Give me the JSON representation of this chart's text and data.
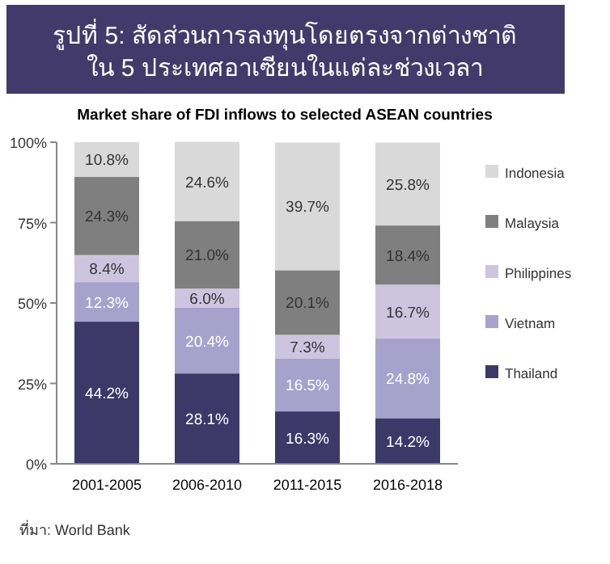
{
  "chart_data": {
    "type": "bar",
    "stacked": true,
    "title": "รูปที่ 5: สัดส่วนการลงทุนโดยตรงจากต่างชาติ ใน 5 ประเทศอาเซียนในแต่ละช่วงเวลา",
    "subtitle": "Market share of FDI inflows to selected ASEAN countries",
    "annotations": [
      "ที่มา: World Bank"
    ],
    "categories": [
      "2001-2005",
      "2006-2010",
      "2011-2015",
      "2016-2018"
    ],
    "ylim": [
      0,
      100
    ],
    "yticks": [
      {
        "value": 0,
        "label": "0%"
      },
      {
        "value": 25,
        "label": "25%"
      },
      {
        "value": 50,
        "label": "50%"
      },
      {
        "value": 75,
        "label": "75%"
      },
      {
        "value": 100,
        "label": "100%"
      }
    ],
    "grid": false,
    "legend": "right",
    "series": [
      {
        "name": "Thailand",
        "color": "#3d3868",
        "values": [
          44.2,
          28.1,
          16.3,
          14.2
        ],
        "value_labels": [
          "44.2%",
          "28.1%",
          "16.3%",
          "14.2%"
        ]
      },
      {
        "name": "Vietnam",
        "color": "#a7a2cc",
        "values": [
          12.3,
          20.4,
          16.5,
          24.8
        ],
        "value_labels": [
          "12.3%",
          "20.4%",
          "16.5%",
          "24.8%"
        ]
      },
      {
        "name": "Philippines",
        "color": "#cdc5df",
        "values": [
          8.4,
          6.0,
          7.3,
          16.7
        ],
        "value_labels": [
          "8.4%",
          "6.0%",
          "7.3%",
          "16.7%"
        ]
      },
      {
        "name": "Malaysia",
        "color": "#7f7f7f",
        "values": [
          24.3,
          21.0,
          20.1,
          18.4
        ],
        "value_labels": [
          "24.3%",
          "21.0%",
          "20.1%",
          "18.4%"
        ]
      },
      {
        "name": "Indonesia",
        "color": "#d9d9d9",
        "values": [
          10.8,
          24.6,
          39.7,
          25.8
        ],
        "value_labels": [
          "10.8%",
          "24.6%",
          "39.7%",
          "25.8%"
        ]
      }
    ]
  }
}
